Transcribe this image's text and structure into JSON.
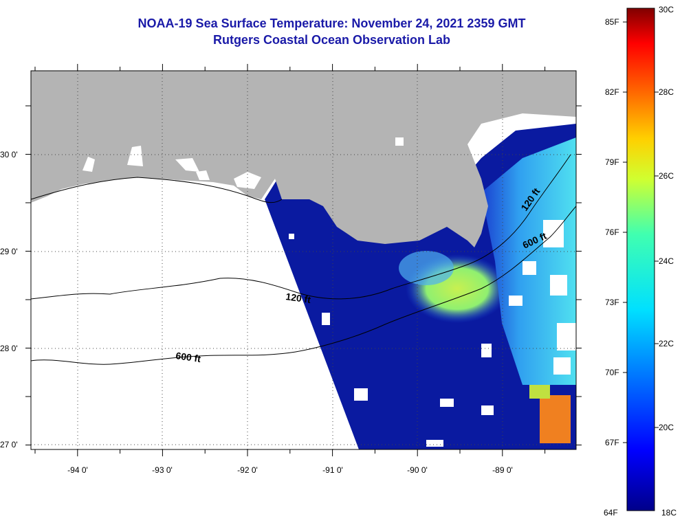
{
  "header": {
    "title": "NOAA-19 Sea Surface Temperature:  November 24, 2021 2359 GMT",
    "subtitle": "Rutgers Coastal Ocean Observation Lab"
  },
  "map": {
    "lon_labels": [
      "-94 0'",
      "-93 0'",
      "-92 0'",
      "-91 0'",
      "-90 0'",
      "-89 0'"
    ],
    "lat_labels": [
      "30 0'",
      "29 0'",
      "28 0'",
      "27 0'"
    ],
    "contour_labels": {
      "c120_west": "120 ft",
      "c120_east": "120 ft",
      "c600_west": "600 ft",
      "c600_east": "600 ft"
    },
    "colors": {
      "land": "#b4b4b4",
      "no_data": "#ffffff",
      "cold_water": "#0a1aa0"
    }
  },
  "colorbar": {
    "f_labels": [
      "85F",
      "82F",
      "79F",
      "76F",
      "73F",
      "70F",
      "67F",
      "64F"
    ],
    "c_labels": [
      "30C",
      "28C",
      "26C",
      "24C",
      "22C",
      "20C",
      "18C"
    ],
    "min_c": 18,
    "max_c": 30
  }
}
